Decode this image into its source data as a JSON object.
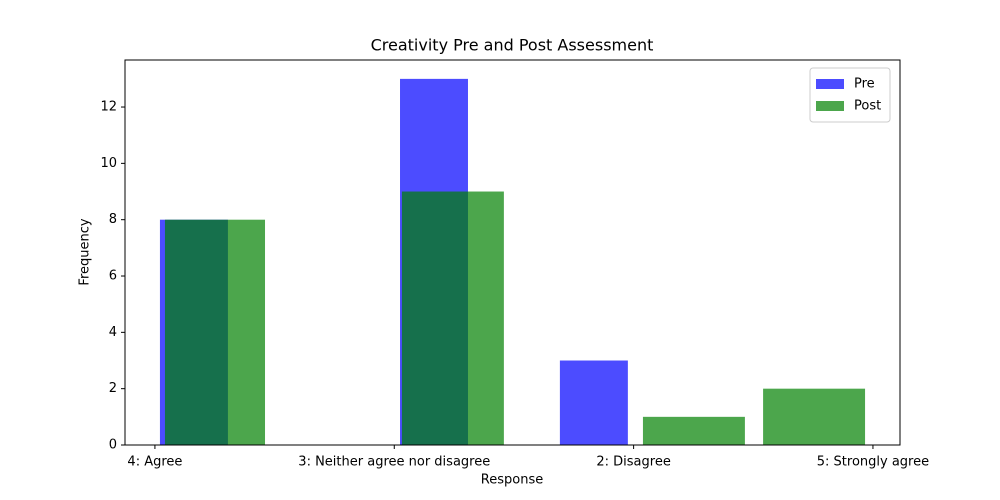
{
  "chart_data": {
    "type": "histogram",
    "title": "Creativity Pre and Post Assessment",
    "x_label": "Response",
    "y_label": "Frequency",
    "xlim": [
      -0.125,
      3.113
    ],
    "xticks": [
      {
        "value": 0,
        "label": "4: Agree"
      },
      {
        "value": 1,
        "label": "3: Neither agree nor disagree"
      },
      {
        "value": 2,
        "label": "2: Disagree"
      },
      {
        "value": 3,
        "label": "5: Strongly agree"
      }
    ],
    "ylim": [
      0,
      13.67
    ],
    "yticks": [
      0,
      2,
      4,
      6,
      8,
      10,
      12
    ],
    "legend": "upper right",
    "series": [
      {
        "name": "Pre",
        "color": "#0000ff",
        "bins": [
          0.021,
          0.305,
          1.024,
          1.308,
          1.692,
          1.976
        ],
        "values": [
          8,
          0,
          13,
          0,
          3
        ]
      },
      {
        "name": "Post",
        "color": "#008000",
        "bins": [
          0.042,
          0.46,
          1.032,
          1.458,
          2.039,
          2.465,
          2.541,
          2.967
        ],
        "values": [
          8,
          0,
          9,
          0,
          1,
          0,
          2
        ]
      }
    ]
  }
}
